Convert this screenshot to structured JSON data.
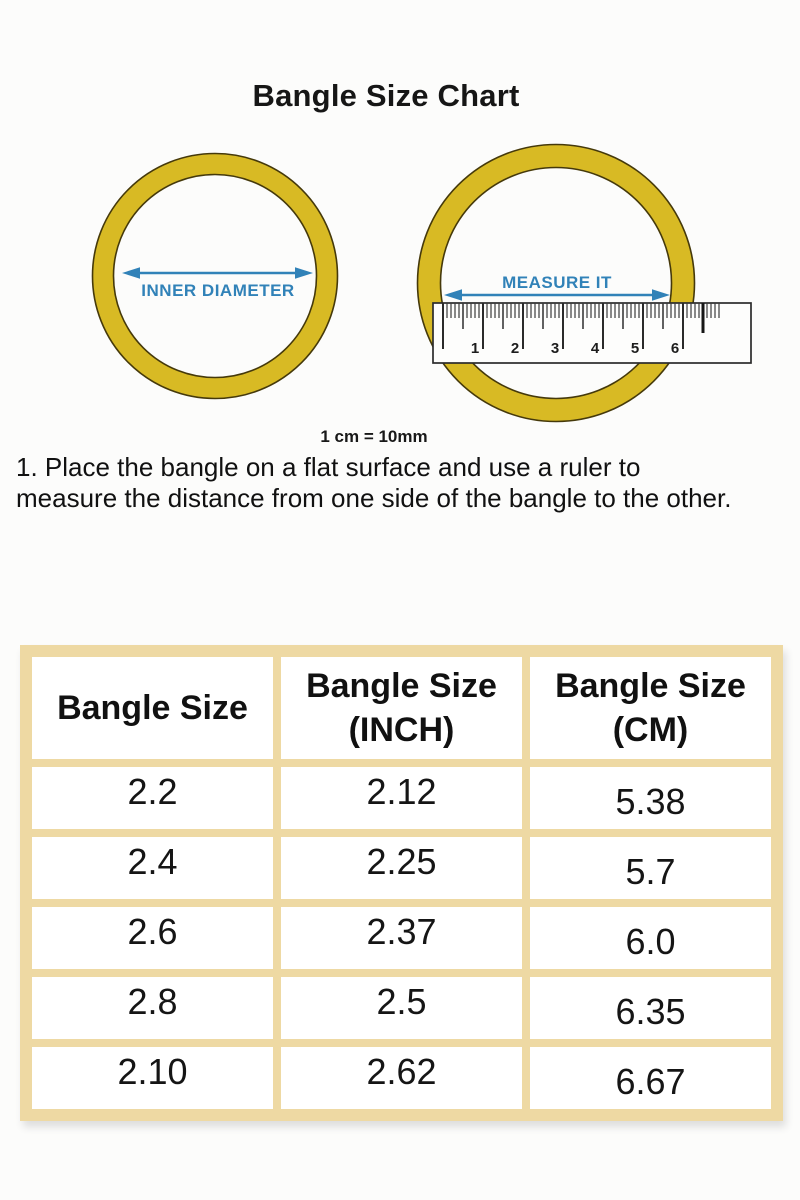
{
  "title": "Bangle Size Chart",
  "illustration": {
    "left_label": "INNER DIAMETER",
    "right_label": "MEASURE IT",
    "unit_note": "1 cm = 10mm",
    "ruler_numbers": [
      "1",
      "2",
      "3",
      "4",
      "5",
      "6"
    ]
  },
  "instructions": {
    "line1": "1. Place the bangle on a flat surface and use a ruler to",
    "line2": "measure the distance from one side of the bangle to the other."
  },
  "table": {
    "headers": [
      {
        "line1": "Bangle Size",
        "line2": ""
      },
      {
        "line1": "Bangle Size",
        "line2": "(INCH)"
      },
      {
        "line1": "Bangle Size",
        "line2": "(CM)"
      }
    ],
    "rows": [
      [
        "2.2",
        "2.12",
        "5.38"
      ],
      [
        "2.4",
        "2.25",
        "5.7"
      ],
      [
        "2.6",
        "2.37",
        "6.0"
      ],
      [
        "2.8",
        "2.5",
        "6.35"
      ],
      [
        "2.10",
        "2.62",
        "6.67"
      ]
    ]
  },
  "chart_data": {
    "type": "table",
    "title": "Bangle Size Chart",
    "columns": [
      "Bangle Size",
      "Bangle Size (INCH)",
      "Bangle Size (CM)"
    ],
    "rows": [
      [
        "2.2",
        "2.12",
        "5.38"
      ],
      [
        "2.4",
        "2.25",
        "5.7"
      ],
      [
        "2.6",
        "2.37",
        "6.0"
      ],
      [
        "2.8",
        "2.5",
        "6.35"
      ],
      [
        "2.10",
        "2.62",
        "6.67"
      ]
    ]
  },
  "colors": {
    "background": "#fcfcfb",
    "bangle_gold": "#d8ba24",
    "bangle_edge": "#45390a",
    "accent_blue": "#3182b8",
    "table_tan": "#eed9a3",
    "ruler_edge": "#2b2b2b",
    "text_dark": "#141414"
  }
}
